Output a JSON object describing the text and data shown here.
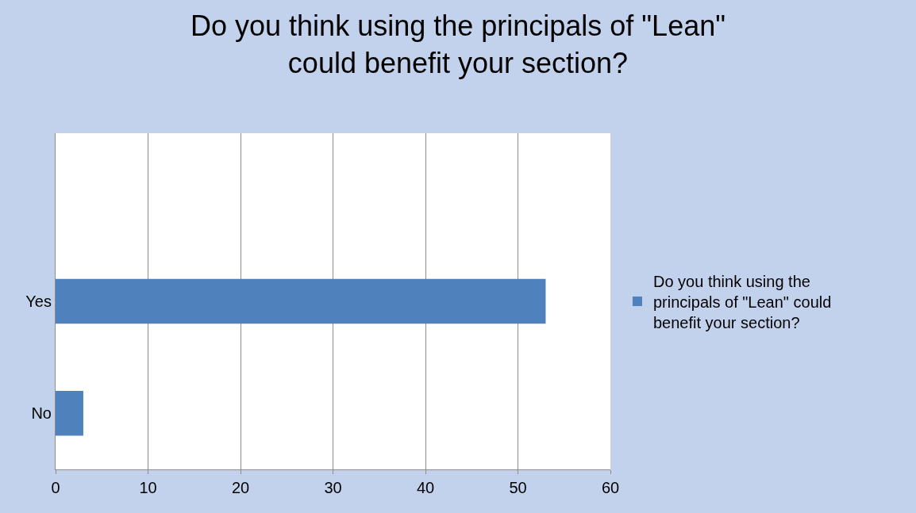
{
  "chart_data": {
    "type": "bar",
    "orientation": "horizontal",
    "title": "Do you think using the principals of \"Lean\"\ncould benefit your section?",
    "categories": [
      null,
      "Yes",
      "No"
    ],
    "series": [
      {
        "name": "Do you think using the principals of \"Lean\" could benefit your section?",
        "color": "#4f81bd",
        "values": [
          null,
          53,
          3
        ]
      }
    ],
    "xlim": [
      0,
      60
    ],
    "xticks": [
      0,
      10,
      20,
      30,
      40,
      50,
      60
    ],
    "grid": "x",
    "legend": "right"
  }
}
